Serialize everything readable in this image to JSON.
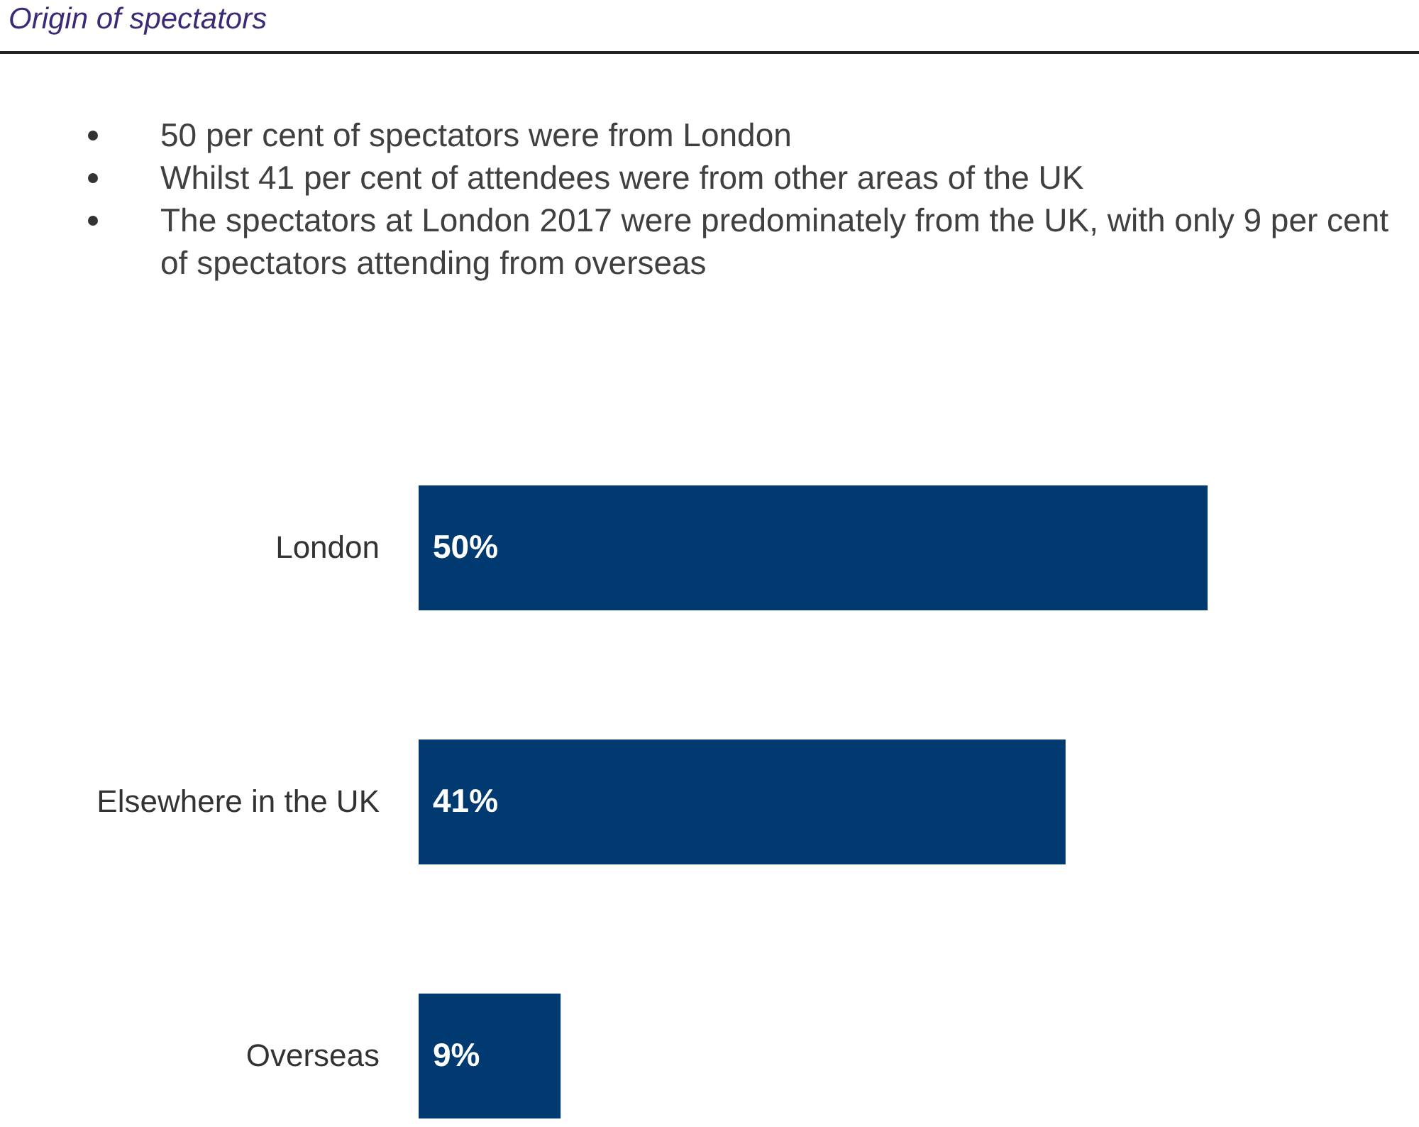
{
  "chart_data": {
    "type": "bar",
    "orientation": "horizontal",
    "title": "Origin of spectators",
    "annotations": [
      "50 per cent of spectators were from London",
      "Whilst 41 per cent of attendees were from other areas of the UK",
      "The spectators at London 2017 were predominately from the UK, with only 9 per cent of spectators attending from overseas"
    ],
    "categories": [
      "London",
      "Elsewhere in the UK",
      "Overseas"
    ],
    "values": [
      50,
      41,
      9
    ],
    "value_labels": [
      "50%",
      "41%",
      "9%"
    ],
    "color": "#003a70"
  }
}
